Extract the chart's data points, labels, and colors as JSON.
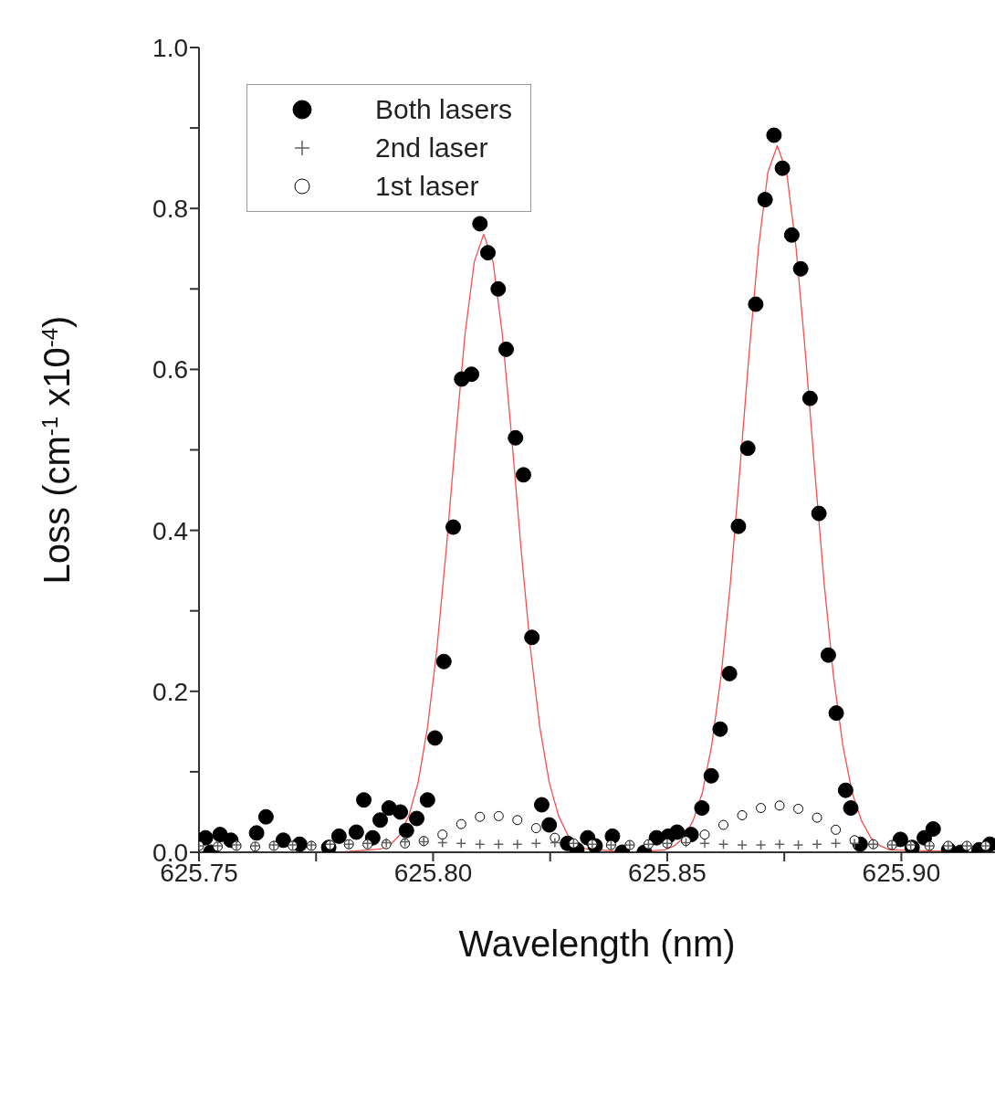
{
  "chart_data": {
    "type": "scatter",
    "xlabel": "Wavelength (nm)",
    "ylabel": "Loss (cm$^{-1}$ x10$^{-4}$)",
    "xlim": [
      625.75,
      625.92
    ],
    "ylim": [
      0,
      1
    ],
    "xticks": [
      {
        "value": 625.75,
        "label": "625.75"
      },
      {
        "value": 625.775,
        "label": null
      },
      {
        "value": 625.8,
        "label": "625.80"
      },
      {
        "value": 625.825,
        "label": null
      },
      {
        "value": 625.85,
        "label": "625.85"
      },
      {
        "value": 625.875,
        "label": null
      },
      {
        "value": 625.9,
        "label": "625.90"
      }
    ],
    "yticks": [
      {
        "value": 0,
        "label": "0.0"
      },
      {
        "value": 0.1,
        "label": null
      },
      {
        "value": 0.2,
        "label": "0.2"
      },
      {
        "value": 0.3,
        "label": null
      },
      {
        "value": 0.4,
        "label": "0.4"
      },
      {
        "value": 0.5,
        "label": null
      },
      {
        "value": 0.6,
        "label": "0.6"
      },
      {
        "value": 0.7,
        "label": null
      },
      {
        "value": 0.8,
        "label": "0.8"
      },
      {
        "value": 0.9,
        "label": null
      },
      {
        "value": 1,
        "label": "1.0"
      }
    ],
    "grid": false,
    "legend": "top left",
    "series": [
      {
        "name": "Both lasers",
        "marker": "circle",
        "color": "#000000",
        "x": [
          625.7514,
          625.7525,
          625.7545,
          625.7568,
          625.7623,
          625.7643,
          625.768,
          625.7715,
          625.7777,
          625.7799,
          625.7836,
          625.7852,
          625.7871,
          625.7887,
          625.7906,
          625.793,
          625.7943,
          625.7965,
          625.7988,
          625.8004,
          625.8023,
          625.8043,
          625.8061,
          625.8082,
          625.81,
          625.8117,
          625.8139,
          625.8156,
          625.8176,
          625.8193,
          625.8211,
          625.8232,
          625.8248,
          625.8287,
          625.8307,
          625.833,
          625.8346,
          625.8383,
          625.8404,
          625.8451,
          625.8477,
          625.8502,
          625.8521,
          625.8551,
          625.8574,
          625.8594,
          625.8613,
          625.8633,
          625.8652,
          625.8672,
          625.8689,
          625.8709,
          625.8728,
          625.8746,
          625.8766,
          625.8785,
          625.8805,
          625.8824,
          625.8844,
          625.8861,
          625.8881,
          625.8892,
          625.8912,
          625.8998,
          625.9023,
          625.9049,
          625.9068,
          625.9101,
          625.9127,
          625.9166,
          625.9189
        ],
        "values": [
          0.018,
          0.0,
          0.022,
          0.015,
          0.024,
          0.044,
          0.015,
          0.01,
          0.006,
          0.02,
          0.025,
          0.065,
          0.018,
          0.04,
          0.055,
          0.05,
          0.027,
          0.042,
          0.065,
          0.142,
          0.237,
          0.404,
          0.588,
          0.594,
          0.781,
          0.745,
          0.7,
          0.625,
          0.515,
          0.469,
          0.267,
          0.059,
          0.034,
          0.011,
          0.003,
          0.018,
          0.008,
          0.02,
          0.0,
          0.0,
          0.018,
          0.02,
          0.025,
          0.022,
          0.055,
          0.095,
          0.153,
          0.222,
          0.405,
          0.502,
          0.681,
          0.811,
          0.891,
          0.85,
          0.767,
          0.725,
          0.564,
          0.421,
          0.245,
          0.173,
          0.077,
          0.055,
          0.01,
          0.016,
          0.006,
          0.018,
          0.029,
          0.003,
          0.0,
          0.003,
          0.01
        ]
      },
      {
        "name": "2nd laser",
        "marker": "cross",
        "color": "#606060",
        "x": [
          625.75,
          625.754,
          625.758,
          625.762,
          625.766,
          625.77,
          625.774,
          625.778,
          625.782,
          625.786,
          625.79,
          625.794,
          625.798,
          625.802,
          625.806,
          625.81,
          625.814,
          625.818,
          625.822,
          625.826,
          625.83,
          625.834,
          625.838,
          625.842,
          625.846,
          625.85,
          625.854,
          625.858,
          625.862,
          625.866,
          625.87,
          625.874,
          625.878,
          625.882,
          625.886,
          625.89,
          625.894,
          625.898,
          625.902,
          625.906,
          625.91,
          625.914,
          625.918
        ],
        "values": [
          0.008,
          0.008,
          0.009,
          0.008,
          0.009,
          0.009,
          0.009,
          0.01,
          0.01,
          0.011,
          0.012,
          0.013,
          0.013,
          0.012,
          0.011,
          0.01,
          0.01,
          0.01,
          0.011,
          0.012,
          0.011,
          0.01,
          0.009,
          0.009,
          0.01,
          0.011,
          0.012,
          0.011,
          0.01,
          0.009,
          0.009,
          0.01,
          0.009,
          0.01,
          0.011,
          0.011,
          0.01,
          0.009,
          0.009,
          0.008,
          0.008,
          0.008,
          0.008
        ]
      },
      {
        "name": "1st laser",
        "marker": "circle",
        "color": "#ffffff",
        "x": [
          625.75,
          625.754,
          625.758,
          625.762,
          625.766,
          625.77,
          625.774,
          625.778,
          625.782,
          625.786,
          625.79,
          625.794,
          625.798,
          625.802,
          625.806,
          625.81,
          625.814,
          625.818,
          625.822,
          625.826,
          625.83,
          625.834,
          625.838,
          625.842,
          625.846,
          625.85,
          625.854,
          625.858,
          625.862,
          625.866,
          625.87,
          625.874,
          625.878,
          625.882,
          625.886,
          625.89,
          625.894,
          625.898,
          625.902,
          625.906,
          625.91,
          625.914,
          625.918
        ],
        "values": [
          0.008,
          0.007,
          0.008,
          0.007,
          0.008,
          0.008,
          0.008,
          0.009,
          0.01,
          0.01,
          0.01,
          0.011,
          0.014,
          0.022,
          0.035,
          0.044,
          0.045,
          0.04,
          0.03,
          0.018,
          0.011,
          0.01,
          0.009,
          0.009,
          0.01,
          0.011,
          0.014,
          0.022,
          0.034,
          0.046,
          0.055,
          0.058,
          0.054,
          0.043,
          0.028,
          0.015,
          0.01,
          0.009,
          0.008,
          0.008,
          0.008,
          0.008,
          0.008
        ]
      },
      {
        "type": "line",
        "marker": "none",
        "color": "#f05050",
        "x": [
          625.75,
          625.78,
          625.7888,
          625.7908,
          625.7928,
          625.7948,
          625.7968,
          625.7988,
          625.8008,
          625.8028,
          625.8048,
          625.8068,
          625.8088,
          625.8108,
          625.8128,
          625.8148,
          625.8168,
          625.8188,
          625.8208,
          625.8228,
          625.8248,
          625.8268,
          625.8288,
          625.8308,
          625.8328,
          625.842,
          625.8495,
          625.8515,
          625.8535,
          625.8555,
          625.8575,
          625.8595,
          625.8615,
          625.8635,
          625.8655,
          625.8675,
          625.8695,
          625.8715,
          625.8735,
          625.8755,
          625.8775,
          625.8795,
          625.8815,
          625.8835,
          625.8855,
          625.8875,
          625.8895,
          625.8915,
          625.8935,
          625.8955,
          625.8975,
          625.92
        ],
        "values": [
          0,
          0,
          0.004,
          0.009,
          0.021,
          0.045,
          0.087,
          0.155,
          0.252,
          0.376,
          0.514,
          0.643,
          0.734,
          0.768,
          0.734,
          0.643,
          0.514,
          0.376,
          0.252,
          0.155,
          0.087,
          0.045,
          0.021,
          0.009,
          0.004,
          0,
          0.003,
          0.008,
          0.018,
          0.039,
          0.074,
          0.133,
          0.219,
          0.335,
          0.474,
          0.621,
          0.752,
          0.845,
          0.878,
          0.845,
          0.752,
          0.621,
          0.474,
          0.335,
          0.219,
          0.133,
          0.074,
          0.039,
          0.018,
          0.008,
          0.003,
          0
        ]
      }
    ]
  }
}
